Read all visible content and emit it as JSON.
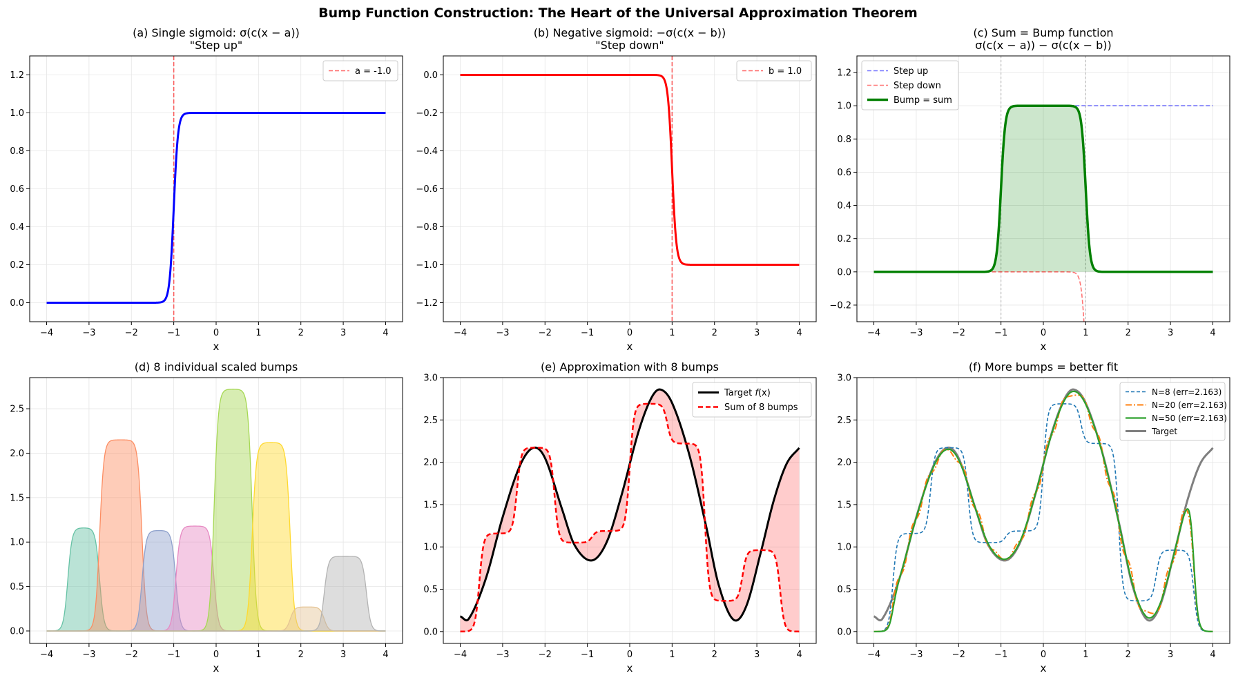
{
  "figure": {
    "title": "Bump Function Construction: The Heart of the Universal Approximation Theorem"
  },
  "chart_data": [
    {
      "panel": "a",
      "type": "line",
      "title": "(a) Single sigmoid: σ(c(x − a))",
      "subtitle": "\"Step up\"",
      "xlabel": "x",
      "ylabel": "",
      "xlim": [
        -4.4,
        4.4
      ],
      "ylim": [
        -0.1,
        1.3
      ],
      "xticks": [
        -4,
        -3,
        -2,
        -1,
        0,
        1,
        2,
        3,
        4
      ],
      "yticks": [
        0.0,
        0.2,
        0.4,
        0.6,
        0.8,
        1.0,
        1.2
      ],
      "grid": true,
      "legend_position": "top-right",
      "series": [
        {
          "name": "",
          "color": "#0000ff",
          "function": "sigmoid(c(x-a))",
          "c": 20,
          "a": -1.0,
          "x_range": [
            -4,
            4
          ]
        }
      ],
      "annotations": [
        {
          "type": "vline",
          "x": -1.0,
          "color": "#ff0000",
          "label": "a = -1.0"
        }
      ]
    },
    {
      "panel": "b",
      "type": "line",
      "title": "(b) Negative sigmoid: −σ(c(x − b))",
      "subtitle": "\"Step down\"",
      "xlabel": "x",
      "ylabel": "",
      "xlim": [
        -4.4,
        4.4
      ],
      "ylim": [
        -1.3,
        0.1
      ],
      "xticks": [
        -4,
        -3,
        -2,
        -1,
        0,
        1,
        2,
        3,
        4
      ],
      "yticks": [
        0.0,
        -0.2,
        -0.4,
        -0.6,
        -0.8,
        -1.0,
        -1.2
      ],
      "grid": true,
      "legend_position": "top-right",
      "series": [
        {
          "name": "",
          "color": "#ff0000",
          "function": "-sigmoid(c(x-b))",
          "c": 20,
          "b": 1.0,
          "x_range": [
            -4,
            4
          ]
        }
      ],
      "annotations": [
        {
          "type": "vline",
          "x": 1.0,
          "color": "#ff0000",
          "label": "b = 1.0"
        }
      ]
    },
    {
      "panel": "c",
      "type": "line",
      "title": "(c) Sum = Bump function",
      "subtitle": "σ(c(x − a)) − σ(c(x − b))",
      "xlabel": "x",
      "ylabel": "",
      "xlim": [
        -4.4,
        4.4
      ],
      "ylim": [
        -0.3,
        1.3
      ],
      "xticks": [
        -4,
        -3,
        -2,
        -1,
        0,
        1,
        2,
        3,
        4
      ],
      "yticks": [
        -0.2,
        0.0,
        0.2,
        0.4,
        0.6,
        0.8,
        1.0,
        1.2
      ],
      "grid": true,
      "legend_position": "top-left",
      "series": [
        {
          "name": "Step up",
          "color": "#0000ff",
          "style": "dashed",
          "function": "sigmoid(c(x-a))",
          "c": 20,
          "a": -1.0,
          "b": 1.0,
          "x_range": [
            -4,
            4
          ]
        },
        {
          "name": "Step down",
          "color": "#ff0000",
          "style": "dashed",
          "function": "-sigmoid(c(x-b))",
          "c": 20,
          "a": -1.0,
          "b": 1.0,
          "x_range": [
            -4,
            4
          ]
        },
        {
          "name": "Bump = sum",
          "color": "#008000",
          "style": "solid",
          "function": "sigmoid(c(x-a)) - sigmoid(c(x-b))",
          "c": 20,
          "a": -1.0,
          "b": 1.0,
          "x_range": [
            -4,
            4
          ],
          "fill": true
        }
      ],
      "annotations": [
        {
          "type": "vline",
          "x": -1.0,
          "color": "#999999"
        },
        {
          "type": "vline",
          "x": 1.0,
          "color": "#999999"
        }
      ]
    },
    {
      "panel": "d",
      "type": "area",
      "title": "(d) 8 individual scaled bumps",
      "xlabel": "x",
      "ylabel": "",
      "xlim": [
        -4.4,
        4.4
      ],
      "ylim": [
        -0.14,
        2.85
      ],
      "xticks": [
        -4,
        -3,
        -2,
        -1,
        0,
        1,
        2,
        3,
        4
      ],
      "yticks": [
        0.0,
        0.5,
        1.0,
        1.5,
        2.0,
        2.5
      ],
      "grid": true,
      "bumps": [
        {
          "a": -3.5,
          "b": -2.75,
          "height": 1.16,
          "color": "#66c2a5"
        },
        {
          "a": -2.75,
          "b": -1.75,
          "height": 2.15,
          "color": "#fc8d62"
        },
        {
          "a": -1.75,
          "b": -0.95,
          "height": 1.13,
          "color": "#8da0cb"
        },
        {
          "a": -0.95,
          "b": -0.05,
          "height": 1.18,
          "color": "#e78ac3"
        },
        {
          "a": -0.05,
          "b": 0.85,
          "height": 2.72,
          "color": "#a6d854"
        },
        {
          "a": 0.85,
          "b": 1.75,
          "height": 2.12,
          "color": "#ffd92f"
        },
        {
          "a": 1.75,
          "b": 2.55,
          "height": 0.27,
          "color": "#e5c494"
        },
        {
          "a": 2.55,
          "b": 3.55,
          "height": 0.84,
          "color": "#b3b3b3"
        }
      ],
      "c": 20
    },
    {
      "panel": "e",
      "type": "line",
      "title": "(e) Approximation with 8 bumps",
      "xlabel": "x",
      "ylabel": "",
      "xlim": [
        -4.4,
        4.4
      ],
      "ylim": [
        -0.14,
        3.0
      ],
      "xticks": [
        -4,
        -3,
        -2,
        -1,
        0,
        1,
        2,
        3,
        4
      ],
      "yticks": [
        0.0,
        0.5,
        1.0,
        1.5,
        2.0,
        2.5,
        3.0
      ],
      "grid": true,
      "legend_position": "top-right",
      "series": [
        {
          "name": "Target f(x)",
          "name_main": "Target ",
          "name_italic": "f",
          "name_tail": "(x)",
          "color": "#000000",
          "style": "solid"
        },
        {
          "name": "Sum of 8 bumps",
          "color": "#ff0000",
          "style": "dashed",
          "n_bumps": 8
        }
      ],
      "fill_between": {
        "color": "#ff0000",
        "opacity": 0.2
      }
    },
    {
      "panel": "f",
      "type": "line",
      "title": "(f) More bumps = better fit",
      "xlabel": "x",
      "ylabel": "",
      "xlim": [
        -4.4,
        4.4
      ],
      "ylim": [
        -0.14,
        3.0
      ],
      "xticks": [
        -4,
        -3,
        -2,
        -1,
        0,
        1,
        2,
        3,
        4
      ],
      "yticks": [
        0.0,
        0.5,
        1.0,
        1.5,
        2.0,
        2.5,
        3.0
      ],
      "grid": true,
      "legend_position": "top-right",
      "series": [
        {
          "name": "N=8 (err=2.163)",
          "color": "#1f77b4",
          "style": "dashed",
          "n_bumps": 8,
          "x_start": -4,
          "x_end": 3.55
        },
        {
          "name": "N=20 (err=2.163)",
          "color": "#ff7f0e",
          "style": "dashdot",
          "n_bumps": 20,
          "x_start": -4,
          "x_end": 3.55
        },
        {
          "name": "N=50 (err=2.163)",
          "color": "#2ca02c",
          "style": "solid",
          "n_bumps": 50,
          "x_start": -4,
          "x_end": 3.55
        },
        {
          "name": "Target",
          "color": "#7f7f7f",
          "style": "solid"
        }
      ]
    }
  ]
}
